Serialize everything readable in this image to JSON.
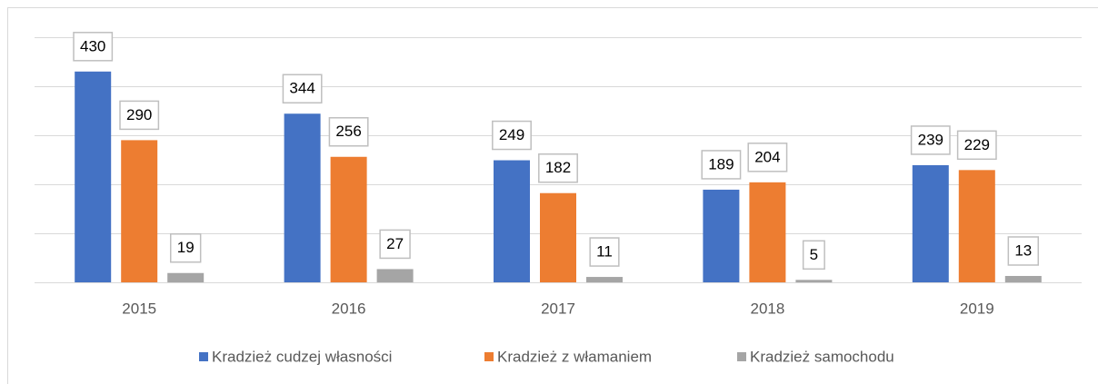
{
  "chart_data": {
    "type": "bar",
    "categories": [
      "2015",
      "2016",
      "2017",
      "2018",
      "2019"
    ],
    "series": [
      {
        "name": "Kradzież cudzej własności",
        "color": "#4472c4",
        "values": [
          430,
          344,
          249,
          189,
          239
        ]
      },
      {
        "name": "Kradzież z włamaniem",
        "color": "#ed7d31",
        "values": [
          290,
          256,
          182,
          204,
          229
        ]
      },
      {
        "name": "Kradzież samochodu",
        "color": "#a5a5a5",
        "values": [
          19,
          27,
          11,
          5,
          13
        ]
      }
    ],
    "ylim": [
      0,
      500
    ],
    "yticks": [
      0,
      100,
      200,
      300,
      400,
      500
    ],
    "grid": true,
    "legend": "bottom"
  }
}
